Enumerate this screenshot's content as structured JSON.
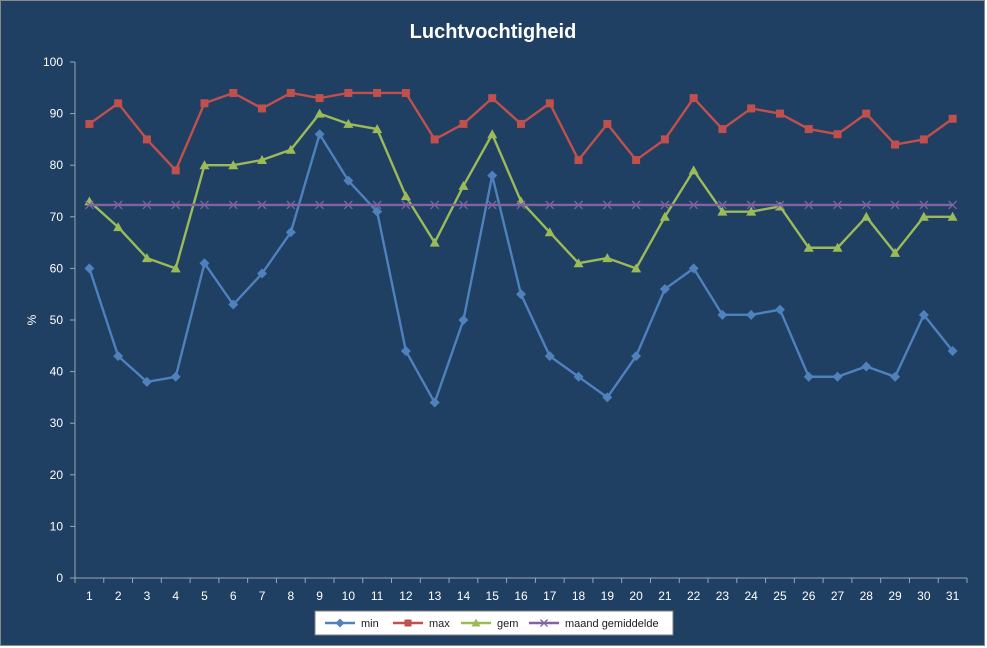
{
  "chart_data": {
    "type": "line",
    "title": "Luchtvochtigheid",
    "xlabel": "",
    "ylabel": "%",
    "ylim": [
      0,
      100
    ],
    "yticks": [
      0,
      10,
      20,
      30,
      40,
      50,
      60,
      70,
      80,
      90,
      100
    ],
    "categories": [
      "1",
      "2",
      "3",
      "4",
      "5",
      "6",
      "7",
      "8",
      "9",
      "10",
      "11",
      "12",
      "13",
      "14",
      "15",
      "16",
      "17",
      "18",
      "19",
      "20",
      "21",
      "22",
      "23",
      "24",
      "25",
      "26",
      "27",
      "28",
      "29",
      "30",
      "31"
    ],
    "grid": false,
    "legend": "bottom",
    "background": "#1f3f63",
    "series": [
      {
        "name": "min",
        "color": "#4f81bd",
        "marker": "diamond",
        "values": [
          60,
          43,
          38,
          39,
          61,
          53,
          59,
          67,
          86,
          77,
          71,
          44,
          34,
          50,
          78,
          55,
          43,
          39,
          35,
          43,
          56,
          60,
          51,
          51,
          52,
          39,
          39,
          41,
          39,
          51,
          44
        ]
      },
      {
        "name": "max",
        "color": "#c0504d",
        "marker": "square",
        "values": [
          88,
          92,
          85,
          79,
          92,
          94,
          91,
          94,
          93,
          94,
          94,
          94,
          85,
          88,
          93,
          88,
          92,
          81,
          88,
          81,
          85,
          93,
          87,
          91,
          90,
          87,
          86,
          90,
          84,
          85,
          89
        ]
      },
      {
        "name": "gem",
        "color": "#9bbb59",
        "marker": "triangle",
        "values": [
          73,
          68,
          62,
          60,
          80,
          80,
          81,
          83,
          90,
          88,
          87,
          74,
          65,
          76,
          86,
          73,
          67,
          61,
          62,
          60,
          70,
          79,
          71,
          71,
          72,
          64,
          64,
          70,
          63,
          70,
          70
        ]
      },
      {
        "name": "maand gemiddelde",
        "color": "#8064a2",
        "marker": "x",
        "values": [
          72.3,
          72.3,
          72.3,
          72.3,
          72.3,
          72.3,
          72.3,
          72.3,
          72.3,
          72.3,
          72.3,
          72.3,
          72.3,
          72.3,
          72.3,
          72.3,
          72.3,
          72.3,
          72.3,
          72.3,
          72.3,
          72.3,
          72.3,
          72.3,
          72.3,
          72.3,
          72.3,
          72.3,
          72.3,
          72.3,
          72.3
        ]
      }
    ]
  }
}
